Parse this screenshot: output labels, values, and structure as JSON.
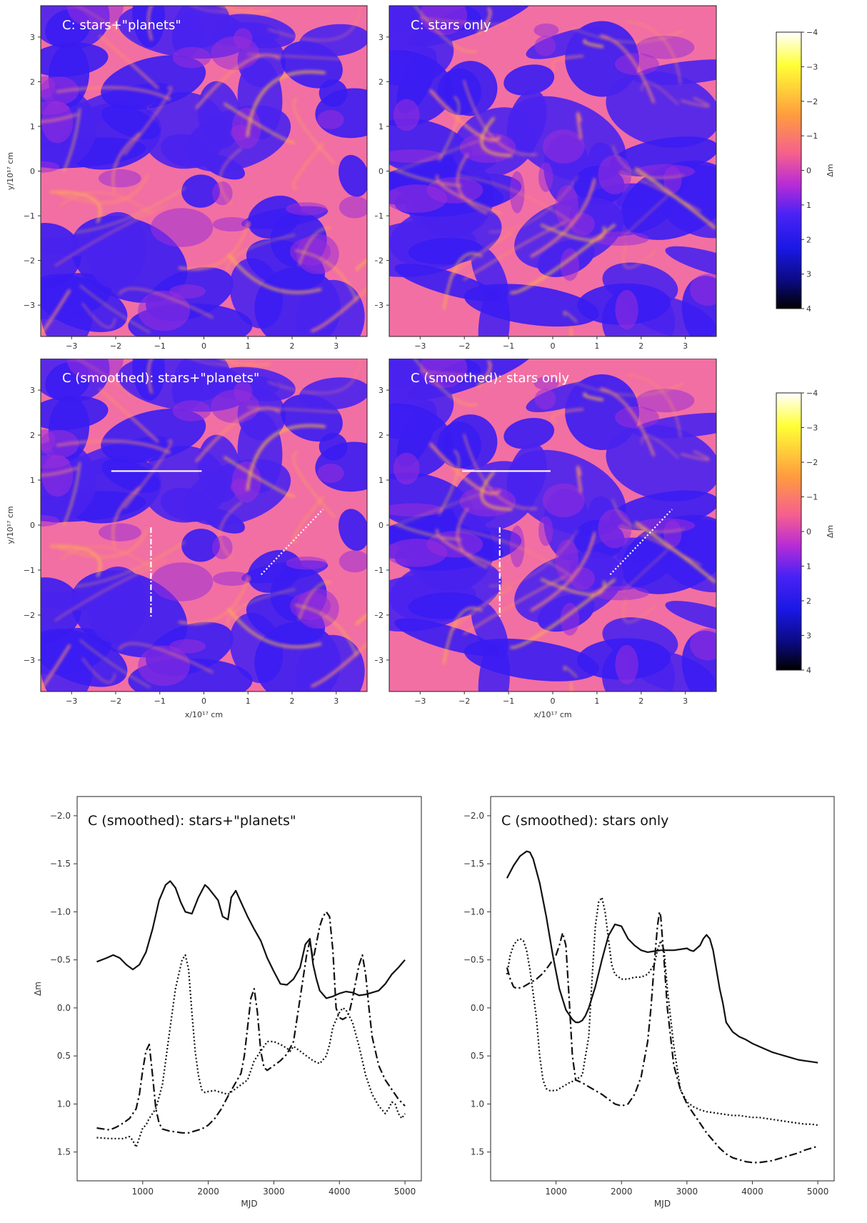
{
  "chart_data": [
    {
      "type": "heatmap",
      "title": "C: stars+\"planets\"",
      "xlabel": "",
      "ylabel": "y/10¹⁷ cm",
      "xlim": [
        -3.7,
        3.7
      ],
      "ylim": [
        -3.7,
        3.7
      ],
      "xticks": [
        "−3",
        "−2",
        "−1",
        "0",
        "1",
        "2",
        "3"
      ],
      "yticks": [
        "−3",
        "−2",
        "−1",
        "0",
        "1",
        "2",
        "3"
      ],
      "colormap": "gnuplot2",
      "seed": 7
    },
    {
      "type": "heatmap",
      "title": "C: stars only",
      "xlabel": "",
      "ylabel": "",
      "xlim": [
        -3.7,
        3.7
      ],
      "ylim": [
        -3.7,
        3.7
      ],
      "xticks": [
        "−3",
        "−2",
        "−1",
        "0",
        "1",
        "2",
        "3"
      ],
      "yticks": [
        "−3",
        "−2",
        "−1",
        "0",
        "1",
        "2",
        "3"
      ],
      "colormap": "gnuplot2",
      "seed": 19
    },
    {
      "type": "heatmap",
      "title": "C (smoothed): stars+\"planets\"",
      "xlabel": "x/10¹⁷ cm",
      "ylabel": "y/10¹⁷ cm",
      "xlim": [
        -3.7,
        3.7
      ],
      "ylim": [
        -3.7,
        3.7
      ],
      "xticks": [
        "−3",
        "−2",
        "−1",
        "0",
        "1",
        "2",
        "3"
      ],
      "yticks": [
        "−3",
        "−2",
        "−1",
        "0",
        "1",
        "2",
        "3"
      ],
      "colormap": "gnuplot2",
      "seed": 7,
      "tracks": [
        {
          "style": "solid",
          "from": [
            -2.1,
            1.2
          ],
          "to": [
            -0.05,
            1.2
          ]
        },
        {
          "style": "dashdot",
          "from": [
            -1.2,
            -0.05
          ],
          "to": [
            -1.2,
            -2.05
          ]
        },
        {
          "style": "dotted",
          "from": [
            1.3,
            -1.1
          ],
          "to": [
            2.7,
            0.35
          ]
        }
      ]
    },
    {
      "type": "heatmap",
      "title": "C (smoothed): stars only",
      "xlabel": "x/10¹⁷ cm",
      "ylabel": "",
      "xlim": [
        -3.7,
        3.7
      ],
      "ylim": [
        -3.7,
        3.7
      ],
      "xticks": [
        "−3",
        "−2",
        "−1",
        "0",
        "1",
        "2",
        "3"
      ],
      "yticks": [
        "−3",
        "−2",
        "−1",
        "0",
        "1",
        "2",
        "3"
      ],
      "colormap": "gnuplot2",
      "seed": 19,
      "tracks": [
        {
          "style": "solid",
          "from": [
            -2.05,
            1.2
          ],
          "to": [
            -0.05,
            1.2
          ]
        },
        {
          "style": "dashdot",
          "from": [
            -1.2,
            -0.05
          ],
          "to": [
            -1.2,
            -2.05
          ]
        },
        {
          "style": "dotted",
          "from": [
            1.3,
            -1.1
          ],
          "to": [
            2.7,
            0.35
          ]
        }
      ]
    },
    {
      "type": "line",
      "title": "C (smoothed): stars+\"planets\"",
      "xlabel": "MJD",
      "ylabel": "Δm",
      "xlim": [
        0,
        5250
      ],
      "ylim": [
        1.8,
        -2.2
      ],
      "xticks": [
        1000,
        2000,
        3000,
        4000,
        5000
      ],
      "yticks": [
        -2.0,
        -1.5,
        -1.0,
        -0.5,
        0.0,
        0.5,
        1.0,
        1.5
      ],
      "series": [
        {
          "style": "solid",
          "x": [
            300,
            450,
            550,
            650,
            750,
            850,
            950,
            1050,
            1150,
            1250,
            1350,
            1420,
            1500,
            1580,
            1650,
            1750,
            1850,
            1950,
            2000,
            2080,
            2150,
            2220,
            2300,
            2350,
            2420,
            2500,
            2600,
            2700,
            2800,
            2900,
            3000,
            3100,
            3200,
            3300,
            3400,
            3480,
            3550,
            3600,
            3650,
            3700,
            3800,
            3900,
            4000,
            4100,
            4200,
            4300,
            4400,
            4500,
            4600,
            4700,
            4800,
            4900,
            5000
          ],
          "y": [
            -0.48,
            -0.52,
            -0.55,
            -0.52,
            -0.45,
            -0.4,
            -0.45,
            -0.58,
            -0.82,
            -1.12,
            -1.28,
            -1.32,
            -1.25,
            -1.1,
            -1.0,
            -0.98,
            -1.15,
            -1.28,
            -1.25,
            -1.18,
            -1.12,
            -0.95,
            -0.92,
            -1.15,
            -1.22,
            -1.1,
            -0.95,
            -0.82,
            -0.7,
            -0.52,
            -0.38,
            -0.25,
            -0.24,
            -0.3,
            -0.42,
            -0.66,
            -0.72,
            -0.45,
            -0.3,
            -0.18,
            -0.1,
            -0.12,
            -0.15,
            -0.17,
            -0.16,
            -0.13,
            -0.14,
            -0.16,
            -0.18,
            -0.25,
            -0.35,
            -0.42,
            -0.5
          ]
        },
        {
          "style": "dashdot",
          "x": [
            300,
            400,
            500,
            600,
            700,
            800,
            900,
            950,
            1000,
            1050,
            1100,
            1150,
            1200,
            1250,
            1300,
            1400,
            1500,
            1600,
            1700,
            1800,
            1900,
            2000,
            2100,
            2200,
            2300,
            2400,
            2500,
            2550,
            2600,
            2650,
            2700,
            2750,
            2800,
            2850,
            2900,
            3000,
            3100,
            3200,
            3300,
            3400,
            3500,
            3550,
            3600,
            3700,
            3750,
            3800,
            3850,
            3900,
            3950,
            4000,
            4050,
            4100,
            4150,
            4200,
            4300,
            4350,
            4400,
            4450,
            4500,
            4600,
            4700,
            4800,
            4900,
            5000
          ],
          "y": [
            1.25,
            1.26,
            1.27,
            1.24,
            1.2,
            1.15,
            1.05,
            0.9,
            0.65,
            0.45,
            0.38,
            0.7,
            1.05,
            1.2,
            1.26,
            1.28,
            1.29,
            1.3,
            1.3,
            1.28,
            1.26,
            1.22,
            1.15,
            1.05,
            0.92,
            0.8,
            0.68,
            0.5,
            0.2,
            -0.1,
            -0.2,
            0.05,
            0.45,
            0.62,
            0.65,
            0.6,
            0.55,
            0.48,
            0.35,
            -0.1,
            -0.55,
            -0.7,
            -0.5,
            -0.85,
            -0.95,
            -1.0,
            -0.95,
            -0.6,
            0.0,
            0.1,
            0.12,
            0.1,
            0.05,
            -0.1,
            -0.45,
            -0.55,
            -0.35,
            0.0,
            0.3,
            0.6,
            0.75,
            0.85,
            0.95,
            1.02
          ]
        },
        {
          "style": "dotted",
          "x": [
            300,
            500,
            700,
            800,
            850,
            900,
            950,
            1000,
            1050,
            1100,
            1200,
            1300,
            1400,
            1500,
            1600,
            1650,
            1700,
            1750,
            1800,
            1850,
            1900,
            1950,
            2000,
            2100,
            2200,
            2300,
            2400,
            2500,
            2600,
            2700,
            2800,
            2900,
            3000,
            3100,
            3200,
            3250,
            3300,
            3400,
            3500,
            3600,
            3700,
            3800,
            3850,
            3900,
            4000,
            4050,
            4100,
            4200,
            4300,
            4400,
            4500,
            4600,
            4700,
            4750,
            4800,
            4850,
            4900,
            4950,
            5000
          ],
          "y": [
            1.35,
            1.36,
            1.36,
            1.34,
            1.38,
            1.45,
            1.35,
            1.25,
            1.22,
            1.15,
            1.05,
            0.8,
            0.3,
            -0.2,
            -0.5,
            -0.55,
            -0.4,
            0.05,
            0.45,
            0.7,
            0.85,
            0.88,
            0.87,
            0.86,
            0.88,
            0.9,
            0.85,
            0.8,
            0.75,
            0.55,
            0.45,
            0.35,
            0.35,
            0.38,
            0.42,
            0.45,
            0.4,
            0.45,
            0.5,
            0.55,
            0.58,
            0.5,
            0.38,
            0.2,
            0.05,
            0.0,
            0.02,
            0.15,
            0.4,
            0.7,
            0.9,
            1.02,
            1.1,
            1.05,
            0.98,
            1.0,
            1.1,
            1.15,
            1.1
          ]
        }
      ]
    },
    {
      "type": "line",
      "title": "C (smoothed): stars only",
      "xlabel": "MJD",
      "ylabel": "",
      "xlim": [
        0,
        5250
      ],
      "ylim": [
        1.8,
        -2.2
      ],
      "xticks": [
        1000,
        2000,
        3000,
        4000,
        5000
      ],
      "yticks": [
        -2.0,
        -1.5,
        -1.0,
        -0.5,
        0.0,
        0.5,
        1.0,
        1.5
      ],
      "series": [
        {
          "style": "solid",
          "x": [
            250,
            350,
            450,
            550,
            600,
            650,
            750,
            850,
            950,
            1050,
            1150,
            1250,
            1300,
            1350,
            1400,
            1450,
            1500,
            1600,
            1700,
            1800,
            1900,
            2000,
            2100,
            2200,
            2300,
            2400,
            2500,
            2600,
            2700,
            2800,
            2900,
            3000,
            3050,
            3100,
            3200,
            3250,
            3300,
            3350,
            3400,
            3450,
            3500,
            3550,
            3600,
            3700,
            3800,
            3900,
            4000,
            4100,
            4200,
            4300,
            4400,
            4500,
            4600,
            4700,
            4800,
            4900,
            5000
          ],
          "y": [
            -1.35,
            -1.48,
            -1.58,
            -1.63,
            -1.62,
            -1.55,
            -1.3,
            -0.95,
            -0.55,
            -0.2,
            0.02,
            0.12,
            0.15,
            0.15,
            0.13,
            0.08,
            0.0,
            -0.22,
            -0.5,
            -0.75,
            -0.87,
            -0.85,
            -0.72,
            -0.65,
            -0.6,
            -0.58,
            -0.59,
            -0.6,
            -0.6,
            -0.6,
            -0.61,
            -0.62,
            -0.6,
            -0.59,
            -0.65,
            -0.72,
            -0.76,
            -0.72,
            -0.6,
            -0.4,
            -0.2,
            -0.05,
            0.15,
            0.25,
            0.3,
            0.33,
            0.37,
            0.4,
            0.43,
            0.46,
            0.48,
            0.5,
            0.52,
            0.54,
            0.55,
            0.56,
            0.57
          ]
        },
        {
          "style": "dashdot",
          "x": [
            250,
            300,
            350,
            400,
            500,
            600,
            700,
            800,
            900,
            1000,
            1050,
            1100,
            1150,
            1200,
            1250,
            1300,
            1400,
            1500,
            1600,
            1700,
            1800,
            1900,
            2000,
            2100,
            2200,
            2300,
            2400,
            2450,
            2500,
            2550,
            2580,
            2600,
            2650,
            2700,
            2800,
            2900,
            3000,
            3100,
            3200,
            3300,
            3400,
            3500,
            3600,
            3700,
            3800,
            3900,
            4000,
            4100,
            4200,
            4300,
            4400,
            4500,
            4600,
            4700,
            4800,
            4900,
            5000
          ],
          "y": [
            -0.42,
            -0.3,
            -0.22,
            -0.2,
            -0.22,
            -0.26,
            -0.3,
            -0.36,
            -0.45,
            -0.55,
            -0.65,
            -0.78,
            -0.65,
            -0.1,
            0.5,
            0.75,
            0.78,
            0.82,
            0.86,
            0.9,
            0.95,
            1.0,
            1.02,
            1.0,
            0.9,
            0.72,
            0.35,
            0.0,
            -0.45,
            -0.85,
            -1.0,
            -0.95,
            -0.5,
            0.0,
            0.6,
            0.85,
            1.0,
            1.1,
            1.2,
            1.3,
            1.38,
            1.46,
            1.52,
            1.56,
            1.58,
            1.6,
            1.61,
            1.61,
            1.6,
            1.59,
            1.57,
            1.55,
            1.53,
            1.51,
            1.48,
            1.46,
            1.44
          ]
        },
        {
          "style": "dotted",
          "x": [
            250,
            300,
            350,
            400,
            450,
            500,
            550,
            600,
            700,
            750,
            800,
            850,
            900,
            1000,
            1100,
            1200,
            1300,
            1400,
            1500,
            1550,
            1600,
            1650,
            1700,
            1750,
            1800,
            1850,
            1900,
            2000,
            2100,
            2200,
            2300,
            2400,
            2500,
            2550,
            2600,
            2650,
            2700,
            2800,
            2900,
            3000,
            3100,
            3200,
            3300,
            3400,
            3500,
            3600,
            3700,
            3800,
            3900,
            4000,
            4100,
            4200,
            4300,
            4400,
            4500,
            4600,
            4700,
            4800,
            4900,
            5000
          ],
          "y": [
            -0.35,
            -0.55,
            -0.65,
            -0.7,
            -0.72,
            -0.7,
            -0.6,
            -0.4,
            0.1,
            0.5,
            0.75,
            0.84,
            0.86,
            0.86,
            0.82,
            0.78,
            0.75,
            0.7,
            0.3,
            -0.3,
            -0.85,
            -1.1,
            -1.15,
            -1.0,
            -0.72,
            -0.45,
            -0.35,
            -0.3,
            -0.3,
            -0.32,
            -0.32,
            -0.35,
            -0.45,
            -0.6,
            -0.7,
            -0.6,
            -0.2,
            0.4,
            0.85,
            0.98,
            1.03,
            1.06,
            1.08,
            1.09,
            1.1,
            1.11,
            1.12,
            1.12,
            1.13,
            1.14,
            1.14,
            1.15,
            1.16,
            1.17,
            1.18,
            1.19,
            1.2,
            1.21,
            1.21,
            1.22
          ]
        }
      ]
    }
  ],
  "colorbars": [
    {
      "label": "Δm",
      "ticks": [
        "−4",
        "−3",
        "−2",
        "−1",
        "0",
        "1",
        "2",
        "3",
        "4"
      ]
    },
    {
      "label": "Δm",
      "ticks": [
        "−4",
        "−3",
        "−2",
        "−1",
        "0",
        "1",
        "2",
        "3",
        "4"
      ]
    }
  ]
}
